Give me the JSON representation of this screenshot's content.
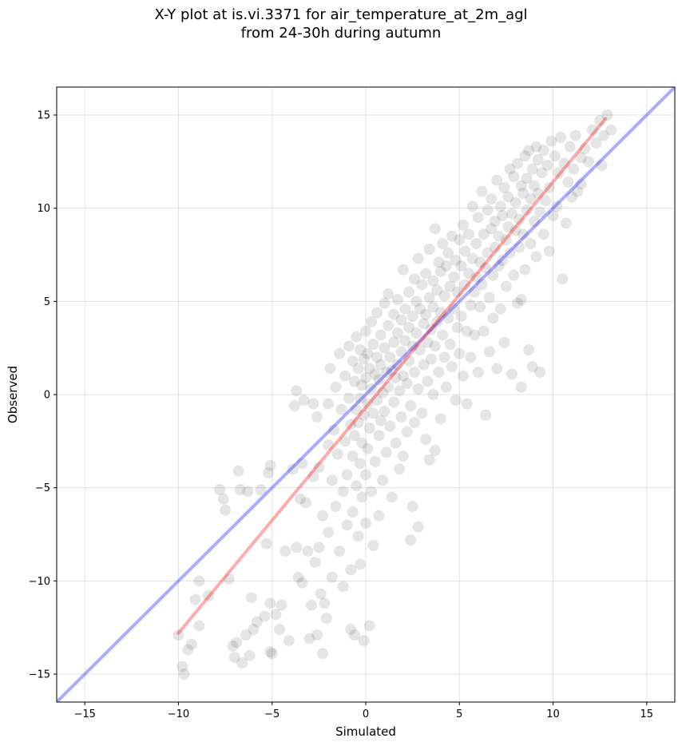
{
  "chart_data": {
    "type": "scatter",
    "title_line1": "X-Y plot at is.vi.3371 for air_temperature_at_2m_agl",
    "title_line2": "from 24-30h during autumn",
    "xlabel": "Simulated",
    "ylabel": "Observed",
    "xlim": [
      -16.5,
      16.5
    ],
    "ylim": [
      -16.5,
      16.5
    ],
    "x_ticks": [
      -15,
      -10,
      -5,
      0,
      5,
      10,
      15
    ],
    "y_ticks": [
      -15,
      -10,
      -5,
      0,
      5,
      10,
      15
    ],
    "x_tick_labels": [
      "−15",
      "−10",
      "−5",
      "0",
      "5",
      "10",
      "15"
    ],
    "y_tick_labels": [
      "−15",
      "−10",
      "−5",
      "0",
      "5",
      "10",
      "15"
    ],
    "grid": true,
    "point_color": "#000000",
    "identity_line": {
      "color": "#0000ff",
      "x": [
        -16.5,
        16.5
      ],
      "y": [
        -16.5,
        16.5
      ]
    },
    "regression_line": {
      "color": "#ff0000",
      "x": [
        -10,
        12.8
      ],
      "y": [
        -12.8,
        14.8
      ]
    },
    "points": [
      [
        -10,
        -12.9
      ],
      [
        -9.8,
        -14.6
      ],
      [
        -9.7,
        -15
      ],
      [
        -9.5,
        -13.7
      ],
      [
        -9.3,
        -13.4
      ],
      [
        -9.1,
        -11
      ],
      [
        -8.9,
        -10
      ],
      [
        -8.9,
        -12.4
      ],
      [
        -8.4,
        -10.8
      ],
      [
        -7.8,
        -5.1
      ],
      [
        -7.6,
        -5.6
      ],
      [
        -7.5,
        -6.2
      ],
      [
        -7.3,
        -9.9
      ],
      [
        -7.1,
        -13.5
      ],
      [
        -7,
        -14.1
      ],
      [
        -6.9,
        -13.3
      ],
      [
        -6.8,
        -4.1
      ],
      [
        -6.7,
        -5.1
      ],
      [
        -6.6,
        -14.4
      ],
      [
        -6.4,
        -12.9
      ],
      [
        -6.3,
        -5.2
      ],
      [
        -6.2,
        -14
      ],
      [
        -6.1,
        -10.9
      ],
      [
        -6,
        -12.6
      ],
      [
        -5.8,
        -12.2
      ],
      [
        -5.6,
        -5.1
      ],
      [
        -5.4,
        -11.9
      ],
      [
        -5.3,
        -8
      ],
      [
        -5.2,
        -4.2
      ],
      [
        -5.1,
        -3.8
      ],
      [
        -5.1,
        -11.2
      ],
      [
        -5.1,
        -13.8
      ],
      [
        -5,
        -13.9
      ],
      [
        -4.8,
        -11.8
      ],
      [
        -4.6,
        -12.6
      ],
      [
        -4.5,
        -11.3
      ],
      [
        -4.3,
        -8.4
      ],
      [
        -4.1,
        -13.2
      ],
      [
        -3.9,
        -4
      ],
      [
        -3.8,
        -0.6
      ],
      [
        -3.7,
        0.2
      ],
      [
        -3.7,
        -8.2
      ],
      [
        -3.6,
        -9.8
      ],
      [
        -3.5,
        -5.6
      ],
      [
        -3.4,
        -3.7
      ],
      [
        -3.4,
        -10.1
      ],
      [
        -3.3,
        -0.3
      ],
      [
        -3.2,
        -5.8
      ],
      [
        -3.1,
        -8.4
      ],
      [
        -3,
        -13.1
      ],
      [
        -2.9,
        -11.3
      ],
      [
        -2.8,
        -0.5
      ],
      [
        -2.8,
        -4.4
      ],
      [
        -2.7,
        -9
      ],
      [
        -2.6,
        -12.9
      ],
      [
        -2.6,
        -1.2
      ],
      [
        -2.5,
        -3.9
      ],
      [
        -2.5,
        -8.2
      ],
      [
        -2.4,
        -10.7
      ],
      [
        -2.3,
        -13.9
      ],
      [
        -2.3,
        -6.5
      ],
      [
        -2.2,
        -11.2
      ],
      [
        -2.1,
        -12
      ],
      [
        -2,
        -0.5
      ],
      [
        -2,
        -2.7
      ],
      [
        -2,
        -7.4
      ],
      [
        -1.9,
        1.4
      ],
      [
        -1.8,
        -4.6
      ],
      [
        -1.8,
        -9.8
      ],
      [
        -1.7,
        -1.9
      ],
      [
        -1.6,
        0.4
      ],
      [
        -1.6,
        -6
      ],
      [
        -1.5,
        -3.2
      ],
      [
        -1.4,
        -8.4
      ],
      [
        -1.4,
        2.2
      ],
      [
        -1.3,
        -0.8
      ],
      [
        -1.2,
        -5.2
      ],
      [
        -1.2,
        -10.3
      ],
      [
        -1.1,
        1
      ],
      [
        -1.1,
        -2.5
      ],
      [
        -1,
        -4.3
      ],
      [
        -1,
        -7
      ],
      [
        -0.9,
        2.6
      ],
      [
        -0.9,
        -0.2
      ],
      [
        -0.8,
        -1.6
      ],
      [
        -0.8,
        -9.4
      ],
      [
        -0.8,
        -12.6
      ],
      [
        -0.7,
        1.8
      ],
      [
        -0.7,
        -3.3
      ],
      [
        -0.7,
        -6.3
      ],
      [
        -0.6,
        0.7
      ],
      [
        -0.6,
        -2.2
      ],
      [
        -0.6,
        -12.9
      ],
      [
        -0.5,
        3.1
      ],
      [
        -0.5,
        -0.8
      ],
      [
        -0.5,
        -4.9
      ],
      [
        -0.4,
        1.4
      ],
      [
        -0.4,
        -1.5
      ],
      [
        -0.4,
        -7.6
      ],
      [
        -0.3,
        2.4
      ],
      [
        -0.3,
        -0.2
      ],
      [
        -0.3,
        -3.7
      ],
      [
        -0.3,
        -9.1
      ],
      [
        -0.2,
        0.5
      ],
      [
        -0.2,
        -2.6
      ],
      [
        -0.2,
        -5.5
      ],
      [
        -0.1,
        1.9
      ],
      [
        -0.1,
        -1.1
      ],
      [
        -0.1,
        -13.2
      ],
      [
        0,
        3.4
      ],
      [
        0,
        0.9
      ],
      [
        0,
        -4.3
      ],
      [
        0,
        -6.9
      ],
      [
        0.1,
        2.2
      ],
      [
        0.1,
        -0.5
      ],
      [
        0.1,
        -2.9
      ],
      [
        0.2,
        1.4
      ],
      [
        0.2,
        -1.8
      ],
      [
        0.2,
        -12.4
      ],
      [
        0.3,
        3.9
      ],
      [
        0.3,
        0.3
      ],
      [
        0.3,
        -5.2
      ],
      [
        0.4,
        2.7
      ],
      [
        0.4,
        -1
      ],
      [
        0.4,
        -8.1
      ],
      [
        0.5,
        1.1
      ],
      [
        0.5,
        -3.6
      ],
      [
        0.6,
        4.4
      ],
      [
        0.6,
        2
      ],
      [
        0.6,
        -0.3
      ],
      [
        0.7,
        0.8
      ],
      [
        0.7,
        -2.2
      ],
      [
        0.7,
        -6.5
      ],
      [
        0.8,
        3.2
      ],
      [
        0.8,
        1.6
      ],
      [
        0.8,
        -1.4
      ],
      [
        0.9,
        0.1
      ],
      [
        0.9,
        -4.6
      ],
      [
        1,
        4.9
      ],
      [
        1,
        2.5
      ],
      [
        1,
        -0.9
      ],
      [
        1.1,
        1.2
      ],
      [
        1.1,
        -3.1
      ],
      [
        1.2,
        5.4
      ],
      [
        1.2,
        3.7
      ],
      [
        1.2,
        0.4
      ],
      [
        1.3,
        2
      ],
      [
        1.3,
        -1.7
      ],
      [
        1.4,
        1.3
      ],
      [
        1.4,
        -5.5
      ],
      [
        1.5,
        4.3
      ],
      [
        1.5,
        2.8
      ],
      [
        1.5,
        -0.4
      ],
      [
        1.6,
        0.9
      ],
      [
        1.6,
        -2.6
      ],
      [
        1.7,
        5.1
      ],
      [
        1.7,
        3.3
      ],
      [
        1.7,
        1.6
      ],
      [
        1.8,
        0.2
      ],
      [
        1.8,
        -4
      ],
      [
        1.9,
        4
      ],
      [
        1.9,
        2.3
      ],
      [
        1.9,
        -1.2
      ],
      [
        2,
        6.7
      ],
      [
        2,
        1
      ],
      [
        2,
        -3.3
      ],
      [
        2.1,
        4.6
      ],
      [
        2.1,
        2.9
      ],
      [
        2.2,
        0.6
      ],
      [
        2.2,
        -2
      ],
      [
        2.3,
        5.5
      ],
      [
        2.3,
        3.6
      ],
      [
        2.3,
        1.8
      ],
      [
        2.4,
        -0.6
      ],
      [
        2.4,
        -7.8
      ],
      [
        2.5,
        4.2
      ],
      [
        2.5,
        2.6
      ],
      [
        2.5,
        -6
      ],
      [
        2.6,
        6.2
      ],
      [
        2.6,
        1.2
      ],
      [
        2.6,
        -1.5
      ],
      [
        2.7,
        3.3
      ],
      [
        2.7,
        5
      ],
      [
        2.8,
        7.3
      ],
      [
        2.8,
        0.3
      ],
      [
        2.8,
        -7.1
      ],
      [
        2.9,
        4.6
      ],
      [
        2.9,
        2.4
      ],
      [
        3,
        5.9
      ],
      [
        3,
        -1
      ],
      [
        3.1,
        3.8
      ],
      [
        3.1,
        1.6
      ],
      [
        3.2,
        6.5
      ],
      [
        3.2,
        4.3
      ],
      [
        3.2,
        -2.4
      ],
      [
        3.3,
        2.8
      ],
      [
        3.3,
        0.7
      ],
      [
        3.4,
        7.8
      ],
      [
        3.4,
        5.2
      ],
      [
        3.4,
        -3.5
      ],
      [
        3.5,
        3.5
      ],
      [
        3.5,
        1.9
      ],
      [
        3.6,
        6.1
      ],
      [
        3.6,
        4.7
      ],
      [
        3.6,
        0
      ],
      [
        3.7,
        8.9
      ],
      [
        3.7,
        2.6
      ],
      [
        3.7,
        -3
      ],
      [
        3.8,
        5.6
      ],
      [
        3.8,
        3.9
      ],
      [
        3.9,
        7.1
      ],
      [
        3.9,
        1.2
      ],
      [
        4,
        4.4
      ],
      [
        4,
        6.6
      ],
      [
        4,
        -1.3
      ],
      [
        4.1,
        3.2
      ],
      [
        4.1,
        8.1
      ],
      [
        4.2,
        5.3
      ],
      [
        4.2,
        2
      ],
      [
        4.3,
        6.9
      ],
      [
        4.3,
        0.4
      ],
      [
        4.4,
        4.1
      ],
      [
        4.4,
        7.6
      ],
      [
        4.5,
        5.8
      ],
      [
        4.5,
        2.7
      ],
      [
        4.6,
        8.5
      ],
      [
        4.6,
        1.5
      ],
      [
        4.7,
        6.3
      ],
      [
        4.7,
        4.6
      ],
      [
        4.8,
        7.2
      ],
      [
        4.8,
        -0.3
      ],
      [
        4.9,
        3.6
      ],
      [
        4.9,
        5.5
      ],
      [
        5,
        8.3
      ],
      [
        5,
        2.2
      ],
      [
        5.1,
        6.9
      ],
      [
        5.1,
        4.2
      ],
      [
        5.2,
        9.1
      ],
      [
        5.2,
        1
      ],
      [
        5.3,
        5.9
      ],
      [
        5.3,
        7.7
      ],
      [
        5.4,
        3.4
      ],
      [
        5.4,
        -0.5
      ],
      [
        5.5,
        6.5
      ],
      [
        5.5,
        8.6
      ],
      [
        5.6,
        4.8
      ],
      [
        5.6,
        2
      ],
      [
        5.7,
        7.3
      ],
      [
        5.7,
        10.1
      ],
      [
        5.8,
        5.5
      ],
      [
        5.8,
        3.2
      ],
      [
        5.9,
        8.1
      ],
      [
        5.9,
        6.3
      ],
      [
        6,
        9.5
      ],
      [
        6,
        1.2
      ],
      [
        6.1,
        4.7
      ],
      [
        6.1,
        7.1
      ],
      [
        6.2,
        10.9
      ],
      [
        6.2,
        5.9
      ],
      [
        6.3,
        8.6
      ],
      [
        6.3,
        3.4
      ],
      [
        6.4,
        6.8
      ],
      [
        6.4,
        -1.1
      ],
      [
        6.5,
        9.9
      ],
      [
        6.5,
        7.6
      ],
      [
        6.6,
        5.2
      ],
      [
        6.6,
        2.3
      ],
      [
        6.7,
        8.9
      ],
      [
        6.7,
        10.5
      ],
      [
        6.8,
        6.4
      ],
      [
        6.8,
        4.1
      ],
      [
        6.9,
        9.3
      ],
      [
        6.9,
        7.9
      ],
      [
        7,
        11.5
      ],
      [
        7,
        1.4
      ],
      [
        7.1,
        6.9
      ],
      [
        7.1,
        8.5
      ],
      [
        7.2,
        10.1
      ],
      [
        7.2,
        4.6
      ],
      [
        7.3,
        9.6
      ],
      [
        7.3,
        7.2
      ],
      [
        7.4,
        11.1
      ],
      [
        7.4,
        2.8
      ],
      [
        7.5,
        8.3
      ],
      [
        7.5,
        5.8
      ],
      [
        7.6,
        10.6
      ],
      [
        7.6,
        9
      ],
      [
        7.7,
        12.1
      ],
      [
        7.7,
        7.6
      ],
      [
        7.8,
        1.1
      ],
      [
        7.8,
        9.7
      ],
      [
        7.9,
        11.7
      ],
      [
        7.9,
        6.4
      ],
      [
        8,
        8.8
      ],
      [
        8,
        10.3
      ],
      [
        8.1,
        12.4
      ],
      [
        8.1,
        4.9
      ],
      [
        8.2,
        9.4
      ],
      [
        8.2,
        7.9
      ],
      [
        8.3,
        11.2
      ],
      [
        8.3,
        0.4
      ],
      [
        8.4,
        10.8
      ],
      [
        8.4,
        8.6
      ],
      [
        8.5,
        12.8
      ],
      [
        8.5,
        6.7
      ],
      [
        8.6,
        9.9
      ],
      [
        8.6,
        11.6
      ],
      [
        8.7,
        13.1
      ],
      [
        8.7,
        2.4
      ],
      [
        8.8,
        10.5
      ],
      [
        8.8,
        8.1
      ],
      [
        8.9,
        12.1
      ],
      [
        8.9,
        1.5
      ],
      [
        9,
        11.2
      ],
      [
        9,
        9.3
      ],
      [
        9.1,
        13.3
      ],
      [
        9.1,
        7.4
      ],
      [
        9.2,
        10.8
      ],
      [
        9.2,
        12.6
      ],
      [
        9.3,
        1.2
      ],
      [
        9.3,
        9.8
      ],
      [
        9.4,
        11.9
      ],
      [
        9.5,
        13.1
      ],
      [
        9.5,
        8.6
      ],
      [
        9.6,
        10.4
      ],
      [
        9.7,
        12.3
      ],
      [
        9.8,
        7.7
      ],
      [
        9.8,
        11.1
      ],
      [
        9.9,
        13.6
      ],
      [
        10,
        9.6
      ],
      [
        10.1,
        12.8
      ],
      [
        10.2,
        10.1
      ],
      [
        10.3,
        11.9
      ],
      [
        10.4,
        13.8
      ],
      [
        10.5,
        6.2
      ],
      [
        10.6,
        12.4
      ],
      [
        10.7,
        9.2
      ],
      [
        10.8,
        11.4
      ],
      [
        10.9,
        13.3
      ],
      [
        11,
        10.6
      ],
      [
        11.1,
        12.1
      ],
      [
        11.2,
        13.9
      ],
      [
        11.3,
        10.9
      ],
      [
        11.5,
        12.7
      ],
      [
        11.7,
        13.2
      ],
      [
        11.9,
        12.5
      ],
      [
        12.1,
        14.2
      ],
      [
        12.3,
        13.5
      ],
      [
        12.5,
        14.7
      ],
      [
        12.7,
        13.9
      ],
      [
        12.9,
        15
      ],
      [
        13.1,
        14.2
      ],
      [
        12.6,
        12.3
      ],
      [
        11.5,
        11.3
      ],
      [
        8.3,
        5.1
      ]
    ]
  }
}
